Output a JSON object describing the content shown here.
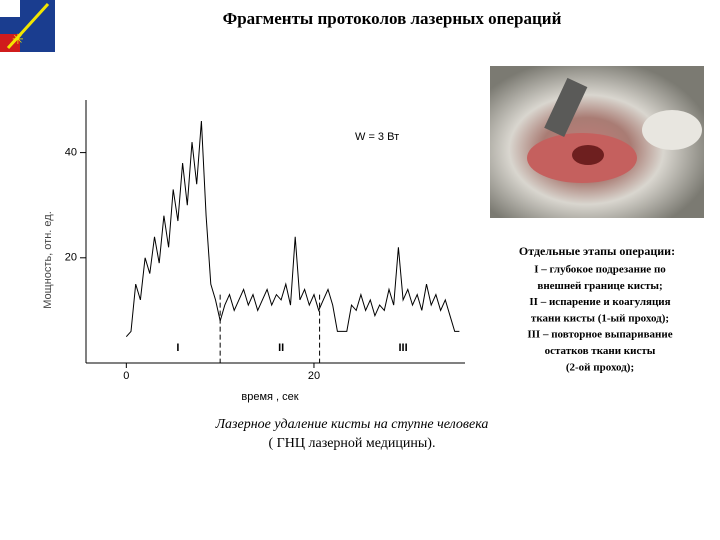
{
  "slide": {
    "title": "Фрагменты протоколов  лазерных операций",
    "stages_heading": "Отдельные этапы операции:",
    "stages": [
      "I – глубокое подрезание по",
      "внешней границе кисты;",
      "II – испарение и коагуляция",
      "ткани кисты  (1-ый проход);",
      "III – повторное выпаривание",
      "остатков ткани кисты",
      "(2-ой проход);"
    ],
    "caption": [
      "Лазерное  удаление кисты  на ступне человека",
      "( ГНЦ лазерной медицины)."
    ]
  },
  "chart_data": {
    "type": "line",
    "annotation": "W = 3 Вт",
    "x_label": "время ,  сек",
    "y_label": "Мощность, отн. ед.",
    "stage_labels": [
      {
        "text": "I",
        "x": 5.5
      },
      {
        "text": "II",
        "x": 16.5
      },
      {
        "text": "III",
        "x": 29.5
      }
    ],
    "stage_lines": [
      10,
      20.6
    ],
    "color": "#000000",
    "x": [
      0,
      0.5,
      1,
      1.5,
      2,
      2.5,
      3,
      3.5,
      4,
      4.5,
      5,
      5.5,
      6,
      6.5,
      7,
      7.5,
      8,
      8.5,
      9,
      9.5,
      10,
      10.5,
      11,
      11.5,
      12,
      12.5,
      13,
      13.5,
      14,
      14.5,
      15,
      15.5,
      16,
      16.5,
      17,
      17.5,
      18,
      18.5,
      19,
      19.5,
      20,
      20.5,
      21,
      21.5,
      22,
      22.5,
      23,
      23.5,
      24,
      24.5,
      25,
      25.5,
      26,
      26.5,
      27,
      27.5,
      28,
      28.5,
      29,
      29.5,
      30,
      30.5,
      31,
      31.5,
      32,
      32.5,
      33,
      33.5,
      34,
      34.5,
      35,
      35.5
    ],
    "values": [
      5,
      6,
      15,
      12,
      20,
      17,
      24,
      19,
      28,
      22,
      33,
      27,
      38,
      30,
      42,
      34,
      46,
      28,
      15,
      12,
      8,
      11,
      13,
      10,
      12,
      14,
      11,
      13,
      10,
      12,
      14,
      11,
      13,
      12,
      15,
      11,
      24,
      12,
      14,
      11,
      13,
      10,
      12,
      14,
      11,
      6,
      6,
      6,
      11,
      10,
      13,
      10,
      12,
      9,
      11,
      10,
      14,
      11,
      22,
      12,
      14,
      11,
      13,
      10,
      15,
      11,
      13,
      10,
      12,
      9,
      6,
      6
    ],
    "xlim": [
      -4.3,
      36.1
    ],
    "ylim": [
      0,
      50
    ],
    "xticks": [
      0,
      20
    ],
    "yticks": [
      20,
      40
    ]
  }
}
